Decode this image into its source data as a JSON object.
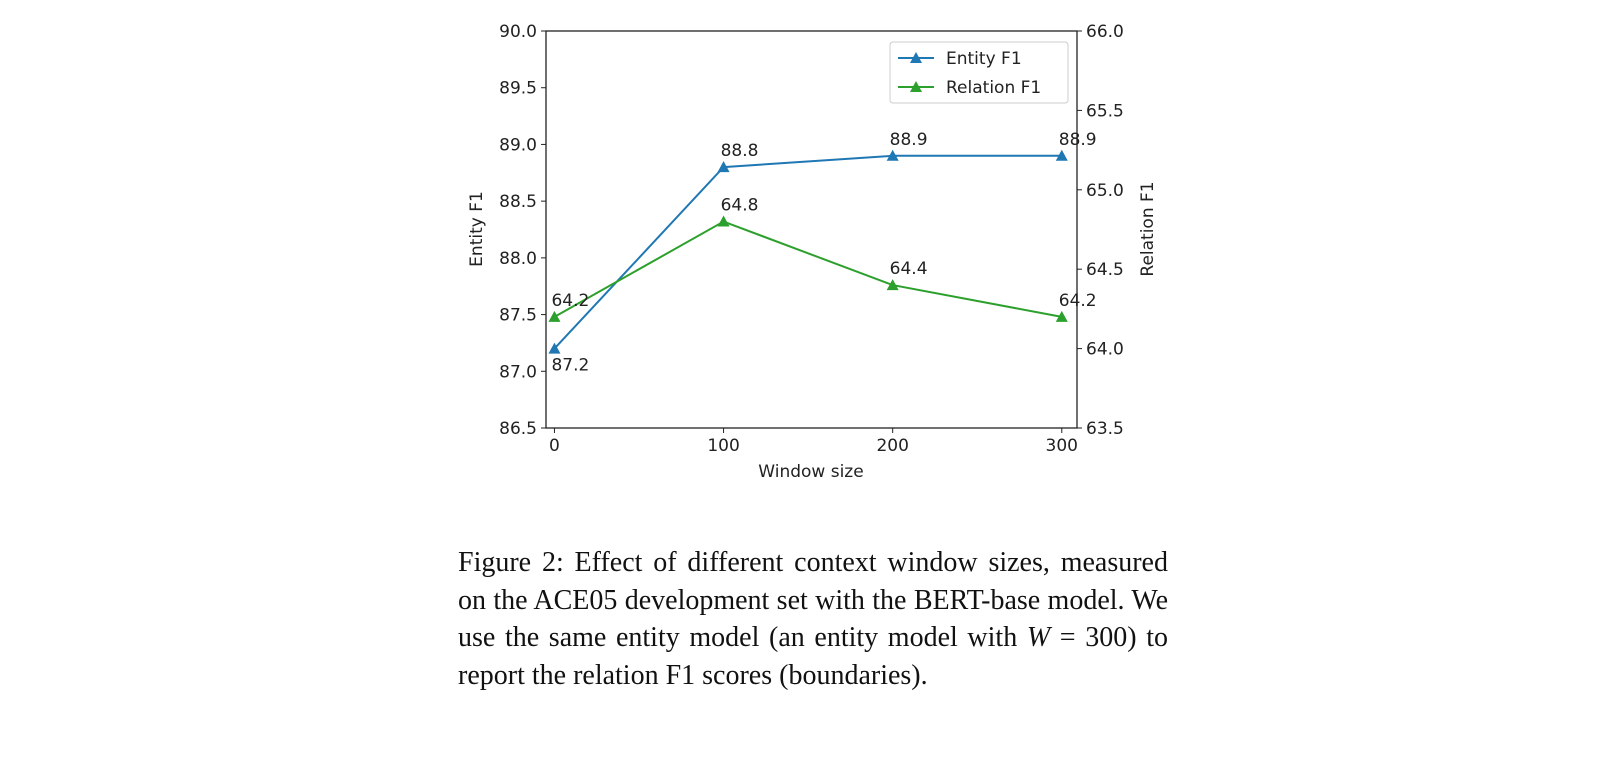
{
  "chart_data": {
    "type": "line",
    "xlabel": "Window size",
    "ylabel": "Entity F1",
    "ylabel_right": "Relation F1",
    "x": [
      0,
      100,
      200,
      300
    ],
    "xticks": [
      "0",
      "100",
      "200",
      "300"
    ],
    "xlim": [
      -5,
      309
    ],
    "ylim": [
      86.5,
      90.0
    ],
    "ylim_right": [
      63.5,
      66.0
    ],
    "yticks": [
      "86.5",
      "87.0",
      "87.5",
      "88.0",
      "88.5",
      "89.0",
      "89.5",
      "90.0"
    ],
    "yticks_right": [
      "63.5",
      "64.0",
      "64.5",
      "65.0",
      "65.5",
      "66.0"
    ],
    "grid": false,
    "legend_position": "top-right",
    "series": [
      {
        "name": "Entity F1",
        "axis": "left",
        "color": "#1f77b4",
        "marker": "triangle-up",
        "values": [
          87.2,
          88.8,
          88.9,
          88.9
        ],
        "labels": [
          "87.2",
          "88.8",
          "88.9",
          "88.9"
        ]
      },
      {
        "name": "Relation F1",
        "axis": "right",
        "color": "#2ca02c",
        "marker": "triangle-up",
        "values": [
          64.2,
          64.8,
          64.4,
          64.2
        ],
        "labels": [
          "64.2",
          "64.8",
          "64.4",
          "64.2"
        ]
      }
    ]
  },
  "caption": {
    "prefix": "Figure 2: Effect of different context window sizes, measured on the ACE05 development set with the BERT-base model. We use the same entity model (an entity model with ",
    "var": "W",
    "eq": " = 300",
    "suffix": ") to report the relation F1 scores (boundaries)."
  }
}
